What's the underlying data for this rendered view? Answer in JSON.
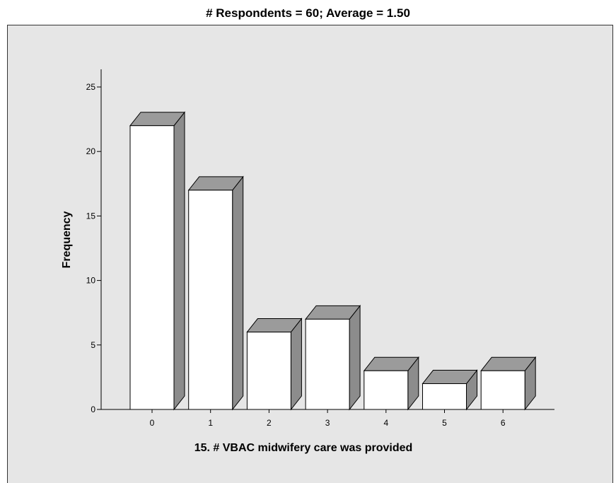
{
  "chart_data": {
    "type": "bar",
    "title": "# Respondents = 60; Average = 1.50",
    "xlabel": "15. # VBAC midwifery care was provided",
    "ylabel": "Frequency",
    "categories": [
      "0",
      "1",
      "2",
      "3",
      "4",
      "5",
      "6"
    ],
    "values": [
      22,
      17,
      6,
      7,
      3,
      2,
      3
    ],
    "ylim": [
      0,
      25
    ],
    "yticks": [
      "0",
      "5",
      "10",
      "15",
      "20",
      "25"
    ],
    "grid": false,
    "legend": "none",
    "style": "3d-bars"
  },
  "colors": {
    "background": "#e6e6e6",
    "bar_front": "#ffffff",
    "bar_side": "#8c8c8c",
    "bar_top": "#9b9b9b",
    "outline": "#000000"
  }
}
